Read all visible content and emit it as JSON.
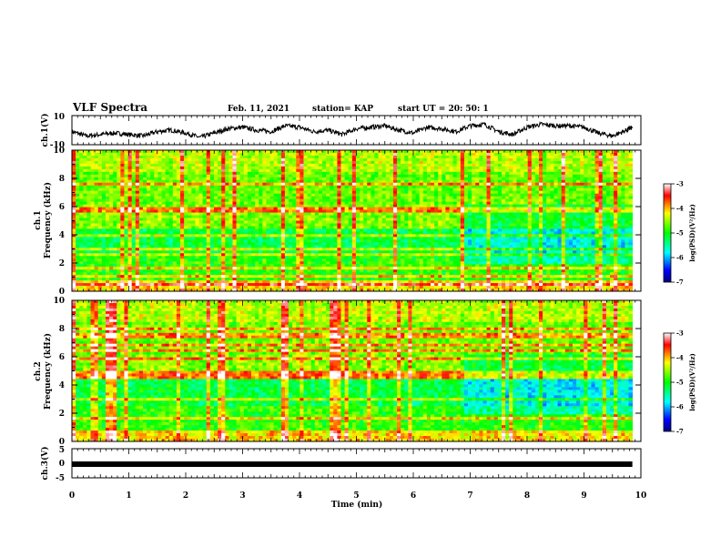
{
  "header": {
    "title": "VLF  Spectra",
    "date": "Feb. 11, 2021",
    "station": "station= KAP",
    "start": "start  UT =   20: 50: 1"
  },
  "colorbar_label": "log(PSD)(V²/Hz)",
  "chart_data": [
    {
      "type": "line",
      "name": "ch1-waveform",
      "ylabel": "ch.1(V)",
      "ylim": [
        -10,
        10
      ],
      "yticks": [
        "10",
        "-10"
      ],
      "xlim": [
        0,
        10
      ],
      "x": [
        0.0,
        0.25,
        0.5,
        0.75,
        1.0,
        1.25,
        1.5,
        1.75,
        2.0,
        2.25,
        2.5,
        2.75,
        3.0,
        3.25,
        3.5,
        3.75,
        4.0,
        4.25,
        4.5,
        4.75,
        5.0,
        5.25,
        5.5,
        5.75,
        6.0,
        6.25,
        6.5,
        6.75,
        7.0,
        7.25,
        7.5,
        7.75,
        8.0,
        8.25,
        8.5,
        8.75,
        9.0,
        9.25,
        9.5,
        9.75,
        9.85
      ],
      "y": [
        -1,
        -4,
        -3,
        -2,
        -3,
        -4,
        -1,
        0,
        -2,
        -5,
        -2,
        1,
        2,
        0,
        -1,
        3,
        2,
        -1,
        0,
        -3,
        1,
        2,
        3,
        0,
        -2,
        2,
        1,
        -1,
        3,
        4,
        -1,
        -3,
        2,
        4,
        3,
        3,
        2,
        -2,
        -4,
        0,
        2
      ]
    },
    {
      "type": "heatmap",
      "name": "ch1-spectrogram",
      "ylabel": "ch.1\nFrequency  (kHz)",
      "ylim": [
        0,
        10
      ],
      "yticks": [
        "0",
        "2",
        "4",
        "6",
        "8",
        "10"
      ],
      "xlim": [
        0,
        10
      ],
      "colorbar_range": [
        -7,
        -3
      ],
      "colorbar_ticks": [
        "-3",
        "-4",
        "-5",
        "-6",
        "-7"
      ]
    },
    {
      "type": "heatmap",
      "name": "ch2-spectrogram",
      "ylabel": "ch.2\nFrequency  (kHz)",
      "ylim": [
        0,
        10
      ],
      "yticks": [
        "0",
        "2",
        "4",
        "6",
        "8",
        "10"
      ],
      "xlim": [
        0,
        10
      ],
      "colorbar_range": [
        -7,
        -3
      ],
      "colorbar_ticks": [
        "-3",
        "-4",
        "-5",
        "-6",
        "-7"
      ]
    },
    {
      "type": "line",
      "name": "ch3-signal",
      "ylabel": "ch.3(V)",
      "ylim": [
        -5,
        5
      ],
      "yticks": [
        "5",
        "0",
        "-5"
      ],
      "xlim": [
        0,
        10
      ],
      "x": [
        0,
        9.85
      ],
      "y": [
        0,
        0
      ],
      "xlabel": "Time  (min)",
      "xticks": [
        "0",
        "1",
        "2",
        "3",
        "4",
        "5",
        "6",
        "7",
        "8",
        "9",
        "10"
      ]
    }
  ]
}
